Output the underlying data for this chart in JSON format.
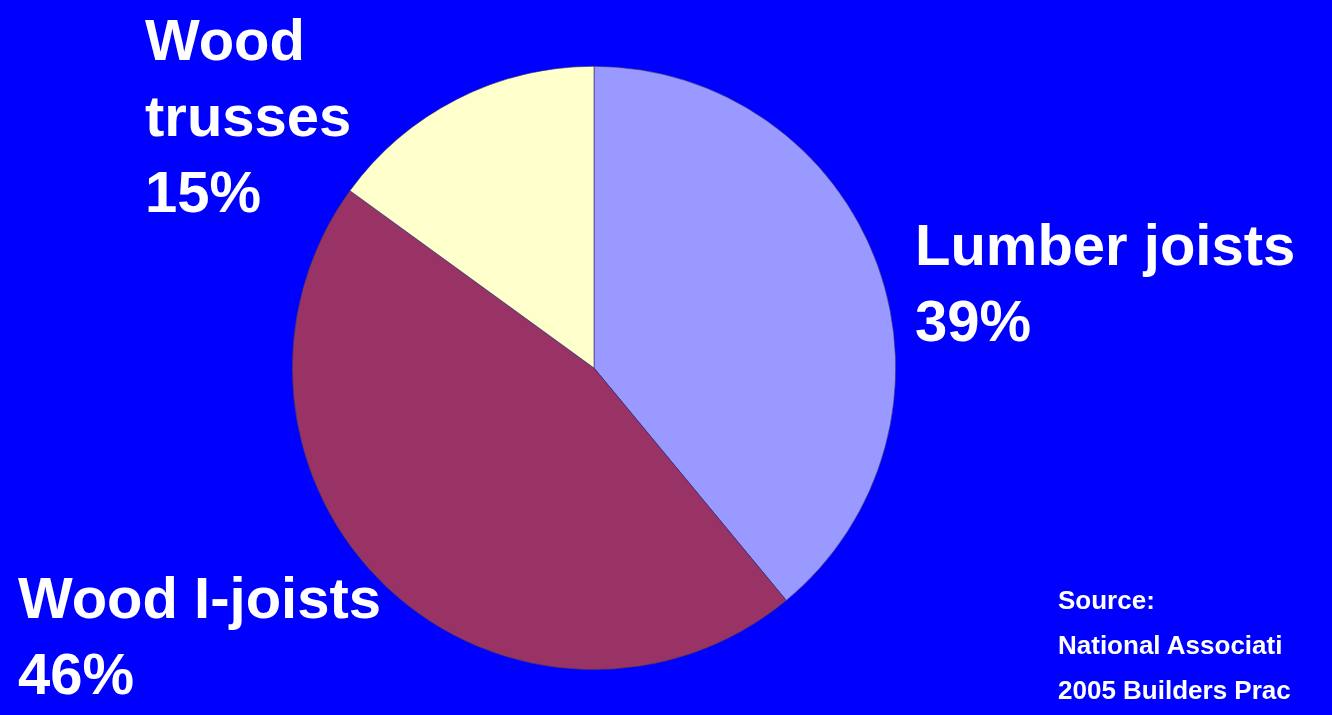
{
  "chart_data": {
    "type": "pie",
    "categories": [
      "Lumber joists",
      "Wood I-joists",
      "Wood trusses"
    ],
    "values": [
      39,
      46,
      15
    ],
    "value_labels": [
      "39%",
      "46%",
      "15%"
    ],
    "colors": [
      "#9999ff",
      "#993366",
      "#ffffcc"
    ],
    "legend": false,
    "annotations": [
      "Source:",
      "National Associati",
      "2005 Builders Prac"
    ]
  }
}
